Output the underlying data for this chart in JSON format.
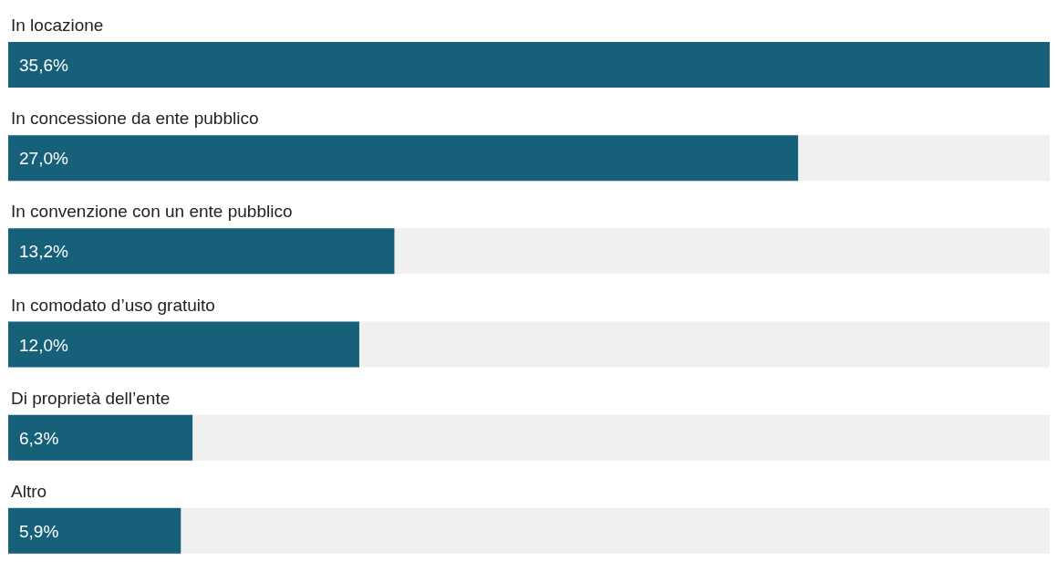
{
  "chart_data": {
    "type": "bar",
    "orientation": "horizontal",
    "categories": [
      "In locazione",
      "In concessione da ente pubblico",
      "In convenzione con un ente pubblico",
      "In comodato d’uso gratuito",
      "Di proprietà dell’ente",
      "Altro"
    ],
    "values": [
      35.6,
      27.0,
      13.2,
      12.0,
      6.3,
      5.9
    ],
    "value_labels": [
      "35,6%",
      "27,0%",
      "13,2%",
      "12,0%",
      "6,3%",
      "5,9%"
    ],
    "color": "#16607a"
  }
}
